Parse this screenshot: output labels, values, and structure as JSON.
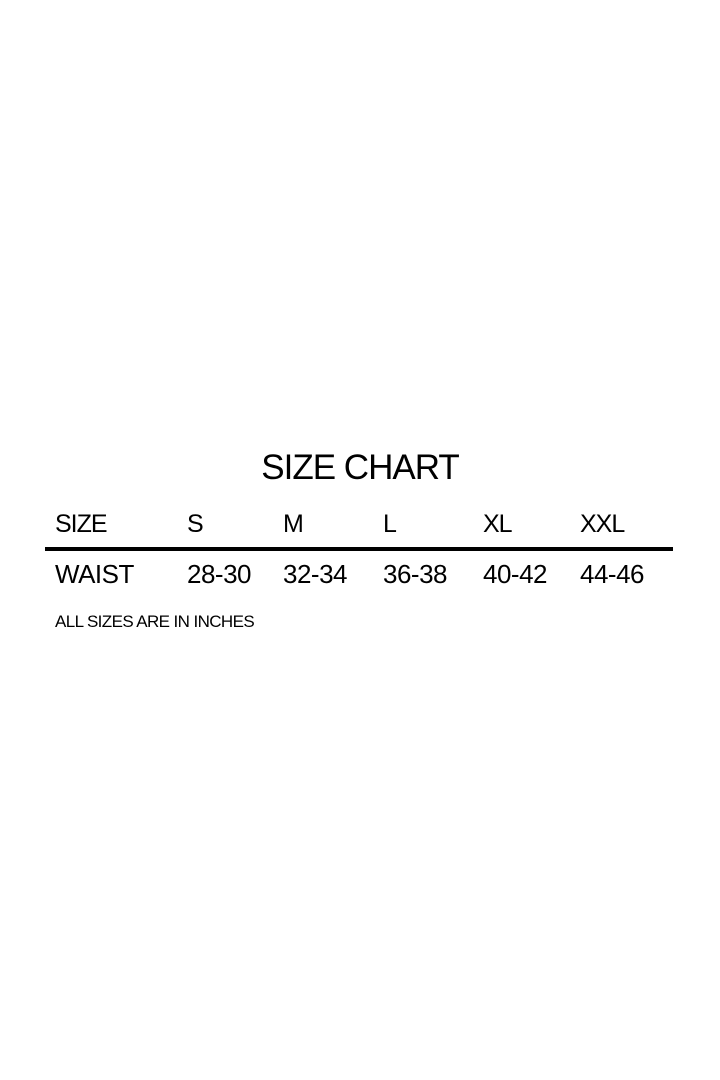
{
  "title": "SIZE CHART",
  "table": {
    "header": [
      "SIZE",
      "S",
      "M",
      "L",
      "XL",
      "XXL"
    ],
    "rows": [
      [
        "WAIST",
        "28-30",
        "32-34",
        "36-38",
        "40-42",
        "44-46"
      ]
    ]
  },
  "note": "ALL SIZES ARE IN INCHES"
}
